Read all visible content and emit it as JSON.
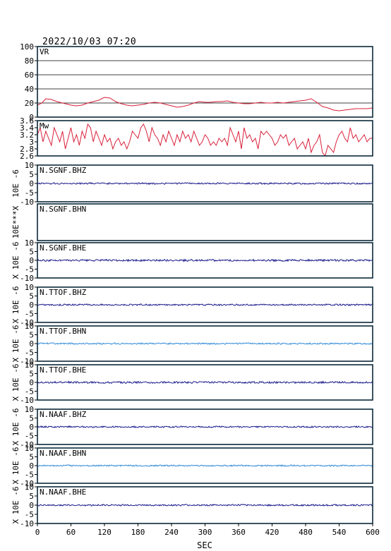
{
  "datetime": "2022/10/03 07:20",
  "colors": {
    "frame": "#0c2a3a",
    "vr": "#d8203a",
    "mw": "#d8203a",
    "dark_trace": "#1a1a8c",
    "light_trace": "#2f8ad8",
    "grid": "#000000"
  },
  "chart_data": {
    "type": "line",
    "x_axis": {
      "label": "SEC",
      "ticks": [
        0,
        60,
        120,
        180,
        240,
        300,
        360,
        420,
        480,
        540,
        600
      ],
      "range": [
        0,
        600
      ]
    },
    "panels": [
      {
        "name": "VR",
        "label": "VR",
        "ylim": [
          0,
          100
        ],
        "ticks": [
          0,
          20,
          40,
          60,
          80,
          100
        ],
        "grid": true,
        "color": "vr",
        "x": [
          0,
          8,
          15,
          25,
          35,
          45,
          55,
          60,
          70,
          80,
          90,
          100,
          110,
          120,
          130,
          140,
          150,
          160,
          170,
          180,
          190,
          200,
          210,
          220,
          230,
          240,
          250,
          260,
          270,
          280,
          290,
          300,
          310,
          320,
          330,
          340,
          350,
          360,
          370,
          380,
          390,
          400,
          410,
          420,
          430,
          440,
          450,
          460,
          470,
          480,
          490,
          500,
          510,
          520,
          530,
          540,
          550,
          560,
          570,
          580,
          590,
          600
        ],
        "y": [
          17,
          20,
          26,
          25,
          22,
          20,
          18,
          17,
          16,
          17,
          20,
          22,
          24,
          28,
          27,
          22,
          19,
          17,
          16,
          17,
          18,
          20,
          21,
          20,
          18,
          16,
          14,
          15,
          17,
          20,
          22,
          21,
          21,
          22,
          22,
          23,
          21,
          20,
          19,
          19,
          20,
          21,
          20,
          20,
          21,
          20,
          21,
          22,
          23,
          24,
          26,
          21,
          15,
          13,
          10,
          9,
          10,
          11,
          12,
          12,
          12,
          13
        ]
      },
      {
        "name": "Mw",
        "label": "Mw",
        "ylim": [
          2.6,
          3.6
        ],
        "ticks": [
          2.6,
          2.8,
          3.0,
          3.2,
          3.4,
          3.6
        ],
        "grid": false,
        "color": "mw",
        "x": [
          0,
          5,
          10,
          15,
          20,
          25,
          30,
          35,
          40,
          45,
          50,
          55,
          60,
          65,
          70,
          75,
          80,
          85,
          90,
          95,
          100,
          105,
          110,
          115,
          120,
          125,
          130,
          135,
          140,
          145,
          150,
          155,
          160,
          165,
          170,
          175,
          180,
          185,
          190,
          195,
          200,
          205,
          210,
          215,
          220,
          225,
          230,
          235,
          240,
          245,
          250,
          255,
          260,
          265,
          270,
          275,
          280,
          285,
          290,
          295,
          300,
          305,
          310,
          315,
          320,
          325,
          330,
          335,
          340,
          345,
          350,
          355,
          360,
          365,
          370,
          375,
          380,
          385,
          390,
          395,
          400,
          405,
          410,
          415,
          420,
          425,
          430,
          435,
          440,
          445,
          450,
          455,
          460,
          465,
          470,
          475,
          480,
          485,
          490,
          495,
          500,
          505,
          510,
          515,
          520,
          525,
          530,
          535,
          540,
          545,
          550,
          555,
          560,
          565,
          570,
          575,
          580,
          585,
          590,
          595,
          600
        ],
        "y": [
          3.2,
          3.4,
          3.0,
          3.3,
          3.1,
          2.9,
          3.4,
          3.2,
          3.0,
          3.3,
          2.8,
          3.1,
          3.4,
          3.0,
          3.2,
          2.9,
          3.3,
          3.1,
          3.5,
          3.4,
          3.0,
          3.3,
          3.1,
          2.9,
          3.2,
          3.0,
          3.1,
          2.8,
          3.0,
          3.1,
          2.9,
          3.0,
          2.8,
          3.0,
          3.3,
          3.2,
          3.1,
          3.4,
          3.5,
          3.3,
          3.0,
          3.4,
          3.2,
          3.1,
          2.9,
          3.2,
          3.0,
          3.3,
          3.1,
          2.9,
          3.2,
          3.0,
          3.3,
          3.1,
          3.2,
          3.0,
          3.3,
          3.1,
          2.9,
          3.0,
          3.2,
          3.1,
          2.9,
          3.0,
          2.9,
          3.1,
          3.0,
          3.1,
          2.9,
          3.4,
          3.2,
          3.0,
          3.3,
          2.8,
          3.4,
          3.1,
          3.2,
          3.0,
          3.1,
          2.8,
          3.3,
          3.2,
          3.3,
          3.2,
          3.1,
          2.9,
          3.0,
          3.2,
          3.1,
          3.2,
          2.9,
          3.0,
          3.1,
          2.8,
          2.9,
          3.0,
          2.8,
          3.1,
          2.7,
          2.9,
          3.0,
          3.2,
          2.7,
          2.6,
          2.9,
          2.8,
          2.7,
          3.0,
          3.2,
          3.3,
          3.1,
          3.0,
          3.4,
          3.1,
          3.2,
          3.0,
          3.1,
          3.2,
          3.0,
          3.1,
          3.1
        ]
      },
      {
        "name": "trace-1",
        "label": "N.SGNF.BHZ",
        "ylim": [
          -10,
          10
        ],
        "ticks": [
          -10,
          -5,
          0,
          5,
          10
        ],
        "ylabel": "10E -6",
        "color": "dark_trace",
        "has_trace": true,
        "amplitude": 0.4
      },
      {
        "name": "trace-2",
        "label": "N.SGNF.BHN",
        "ylim": null,
        "ticks": [],
        "ylabel": "10E***X",
        "color": "dark_trace",
        "has_trace": false,
        "amplitude": 0
      },
      {
        "name": "trace-3",
        "label": "N.SGNF.BHE",
        "ylim": [
          -10,
          10
        ],
        "ticks": [
          -10,
          -5,
          0,
          5,
          10
        ],
        "ylabel": "X 10E -6",
        "color": "dark_trace",
        "has_trace": true,
        "amplitude": 0.5
      },
      {
        "name": "trace-4",
        "label": "N.TTOF.BHZ",
        "ylim": [
          -10,
          10
        ],
        "ticks": [
          -10,
          -5,
          0,
          5,
          10
        ],
        "ylabel": "X 10E -6",
        "color": "dark_trace",
        "has_trace": true,
        "amplitude": 0.4
      },
      {
        "name": "trace-5",
        "label": "N.TTOF.BHN",
        "ylim": [
          -10,
          10
        ],
        "ticks": [
          -10,
          -5,
          0,
          5,
          10
        ],
        "ylabel": "X 10E -6",
        "color": "light_trace",
        "has_trace": true,
        "amplitude": 0.4
      },
      {
        "name": "trace-6",
        "label": "N.TTOF.BHE",
        "ylim": [
          -10,
          10
        ],
        "ticks": [
          -10,
          -5,
          0,
          5,
          10
        ],
        "ylabel": "X 10E -6",
        "color": "dark_trace",
        "has_trace": true,
        "amplitude": 0.5
      },
      {
        "name": "trace-7",
        "label": "N.NAAF.BHZ",
        "ylim": [
          -10,
          10
        ],
        "ticks": [
          -10,
          -5,
          0,
          5,
          10
        ],
        "ylabel": "X 10E -6",
        "color": "dark_trace",
        "has_trace": true,
        "amplitude": 0.4
      },
      {
        "name": "trace-8",
        "label": "N.NAAF.BHN",
        "ylim": [
          -10,
          10
        ],
        "ticks": [
          -10,
          -5,
          0,
          5,
          10
        ],
        "ylabel": "X 10E -6",
        "color": "light_trace",
        "has_trace": true,
        "amplitude": 0.35
      },
      {
        "name": "trace-9",
        "label": "N.NAAF.BHE",
        "ylim": [
          -10,
          10
        ],
        "ticks": [
          -10,
          -5,
          0,
          5,
          10
        ],
        "ylabel": "X 10E -6",
        "color": "dark_trace",
        "has_trace": true,
        "amplitude": 0.4
      }
    ]
  }
}
